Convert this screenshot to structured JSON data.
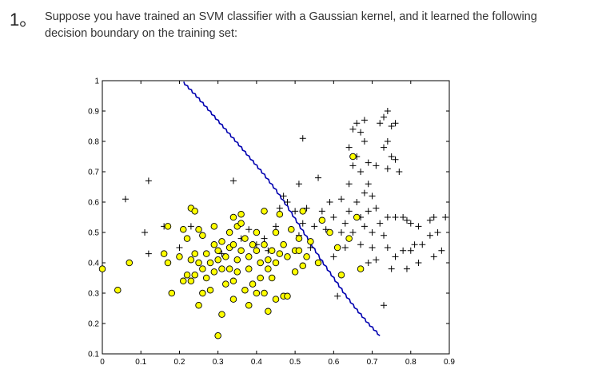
{
  "question": {
    "number": "1。",
    "text": "Suppose you have trained an SVM classifier with a Gaussian kernel, and it learned the following decision boundary on the training set:"
  },
  "chart_data": {
    "type": "scatter",
    "title": "",
    "xlabel": "",
    "ylabel": "",
    "xlim": [
      0,
      0.9
    ],
    "ylim": [
      0.1,
      1
    ],
    "xticks": [
      "0",
      "0.1",
      "0.2",
      "0.3",
      "0.4",
      "0.5",
      "0.6",
      "0.7",
      "0.8",
      "0.9"
    ],
    "yticks": [
      "0.1",
      "0.2",
      "0.3",
      "0.4",
      "0.5",
      "0.6",
      "0.7",
      "0.8",
      "0.9",
      "1"
    ],
    "grid": false,
    "legend": "none",
    "colors": {
      "positive": "#000000",
      "negative_fill": "#ffff00",
      "negative_edge": "#000000",
      "boundary": "#0000b0"
    },
    "series": [
      {
        "marker": "plus",
        "points": [
          [
            0.06,
            0.61
          ],
          [
            0.11,
            0.5
          ],
          [
            0.12,
            0.43
          ],
          [
            0.12,
            0.67
          ],
          [
            0.16,
            0.52
          ],
          [
            0.2,
            0.45
          ],
          [
            0.23,
            0.52
          ],
          [
            0.26,
            0.49
          ],
          [
            0.29,
            0.46
          ],
          [
            0.31,
            0.43
          ],
          [
            0.34,
            0.67
          ],
          [
            0.36,
            0.48
          ],
          [
            0.38,
            0.51
          ],
          [
            0.4,
            0.46
          ],
          [
            0.42,
            0.48
          ],
          [
            0.43,
            0.44
          ],
          [
            0.45,
            0.52
          ],
          [
            0.46,
            0.58
          ],
          [
            0.47,
            0.62
          ],
          [
            0.48,
            0.6
          ],
          [
            0.49,
            0.51
          ],
          [
            0.5,
            0.57
          ],
          [
            0.51,
            0.49
          ],
          [
            0.51,
            0.66
          ],
          [
            0.52,
            0.53
          ],
          [
            0.52,
            0.81
          ],
          [
            0.53,
            0.58
          ],
          [
            0.54,
            0.45
          ],
          [
            0.55,
            0.52
          ],
          [
            0.56,
            0.68
          ],
          [
            0.57,
            0.57
          ],
          [
            0.58,
            0.51
          ],
          [
            0.59,
            0.6
          ],
          [
            0.6,
            0.55
          ],
          [
            0.6,
            0.42
          ],
          [
            0.61,
            0.29
          ],
          [
            0.62,
            0.5
          ],
          [
            0.62,
            0.61
          ],
          [
            0.63,
            0.53
          ],
          [
            0.63,
            0.45
          ],
          [
            0.64,
            0.57
          ],
          [
            0.64,
            0.78
          ],
          [
            0.64,
            0.66
          ],
          [
            0.65,
            0.84
          ],
          [
            0.65,
            0.72
          ],
          [
            0.65,
            0.5
          ],
          [
            0.66,
            0.86
          ],
          [
            0.66,
            0.75
          ],
          [
            0.66,
            0.6
          ],
          [
            0.67,
            0.83
          ],
          [
            0.67,
            0.7
          ],
          [
            0.67,
            0.55
          ],
          [
            0.67,
            0.46
          ],
          [
            0.68,
            0.87
          ],
          [
            0.68,
            0.8
          ],
          [
            0.68,
            0.63
          ],
          [
            0.68,
            0.52
          ],
          [
            0.69,
            0.73
          ],
          [
            0.69,
            0.66
          ],
          [
            0.69,
            0.57
          ],
          [
            0.69,
            0.4
          ],
          [
            0.7,
            0.62
          ],
          [
            0.7,
            0.5
          ],
          [
            0.7,
            0.45
          ],
          [
            0.71,
            0.72
          ],
          [
            0.71,
            0.58
          ],
          [
            0.71,
            0.41
          ],
          [
            0.72,
            0.86
          ],
          [
            0.72,
            0.53
          ],
          [
            0.73,
            0.88
          ],
          [
            0.73,
            0.78
          ],
          [
            0.73,
            0.49
          ],
          [
            0.73,
            0.26
          ],
          [
            0.74,
            0.9
          ],
          [
            0.74,
            0.8
          ],
          [
            0.74,
            0.71
          ],
          [
            0.74,
            0.55
          ],
          [
            0.74,
            0.45
          ],
          [
            0.75,
            0.75
          ],
          [
            0.75,
            0.85
          ],
          [
            0.75,
            0.38
          ],
          [
            0.76,
            0.86
          ],
          [
            0.76,
            0.74
          ],
          [
            0.76,
            0.55
          ],
          [
            0.76,
            0.42
          ],
          [
            0.77,
            0.7
          ],
          [
            0.78,
            0.55
          ],
          [
            0.78,
            0.44
          ],
          [
            0.79,
            0.54
          ],
          [
            0.79,
            0.38
          ],
          [
            0.8,
            0.53
          ],
          [
            0.8,
            0.44
          ],
          [
            0.81,
            0.46
          ],
          [
            0.82,
            0.52
          ],
          [
            0.82,
            0.4
          ],
          [
            0.83,
            0.46
          ],
          [
            0.85,
            0.54
          ],
          [
            0.85,
            0.49
          ],
          [
            0.86,
            0.55
          ],
          [
            0.86,
            0.42
          ],
          [
            0.87,
            0.5
          ],
          [
            0.88,
            0.44
          ],
          [
            0.89,
            0.55
          ]
        ]
      },
      {
        "marker": "circle",
        "points": [
          [
            0.0,
            0.38
          ],
          [
            0.04,
            0.31
          ],
          [
            0.07,
            0.4
          ],
          [
            0.16,
            0.43
          ],
          [
            0.17,
            0.4
          ],
          [
            0.17,
            0.52
          ],
          [
            0.18,
            0.3
          ],
          [
            0.2,
            0.42
          ],
          [
            0.21,
            0.51
          ],
          [
            0.21,
            0.34
          ],
          [
            0.22,
            0.36
          ],
          [
            0.22,
            0.48
          ],
          [
            0.23,
            0.34
          ],
          [
            0.23,
            0.41
          ],
          [
            0.23,
            0.58
          ],
          [
            0.24,
            0.43
          ],
          [
            0.24,
            0.36
          ],
          [
            0.24,
            0.57
          ],
          [
            0.25,
            0.51
          ],
          [
            0.25,
            0.4
          ],
          [
            0.25,
            0.26
          ],
          [
            0.26,
            0.49
          ],
          [
            0.26,
            0.38
          ],
          [
            0.26,
            0.3
          ],
          [
            0.27,
            0.43
          ],
          [
            0.27,
            0.35
          ],
          [
            0.28,
            0.4
          ],
          [
            0.28,
            0.31
          ],
          [
            0.29,
            0.52
          ],
          [
            0.29,
            0.46
          ],
          [
            0.29,
            0.37
          ],
          [
            0.3,
            0.44
          ],
          [
            0.3,
            0.41
          ],
          [
            0.3,
            0.16
          ],
          [
            0.31,
            0.47
          ],
          [
            0.31,
            0.38
          ],
          [
            0.31,
            0.23
          ],
          [
            0.32,
            0.42
          ],
          [
            0.32,
            0.33
          ],
          [
            0.33,
            0.45
          ],
          [
            0.33,
            0.5
          ],
          [
            0.33,
            0.38
          ],
          [
            0.34,
            0.55
          ],
          [
            0.34,
            0.46
          ],
          [
            0.34,
            0.34
          ],
          [
            0.34,
            0.28
          ],
          [
            0.35,
            0.41
          ],
          [
            0.35,
            0.52
          ],
          [
            0.35,
            0.37
          ],
          [
            0.36,
            0.56
          ],
          [
            0.36,
            0.44
          ],
          [
            0.36,
            0.53
          ],
          [
            0.37,
            0.48
          ],
          [
            0.37,
            0.31
          ],
          [
            0.38,
            0.42
          ],
          [
            0.38,
            0.38
          ],
          [
            0.38,
            0.26
          ],
          [
            0.39,
            0.46
          ],
          [
            0.39,
            0.33
          ],
          [
            0.4,
            0.5
          ],
          [
            0.4,
            0.44
          ],
          [
            0.4,
            0.3
          ],
          [
            0.41,
            0.4
          ],
          [
            0.41,
            0.35
          ],
          [
            0.42,
            0.46
          ],
          [
            0.42,
            0.57
          ],
          [
            0.42,
            0.3
          ],
          [
            0.43,
            0.41
          ],
          [
            0.43,
            0.38
          ],
          [
            0.43,
            0.24
          ],
          [
            0.44,
            0.44
          ],
          [
            0.44,
            0.35
          ],
          [
            0.45,
            0.5
          ],
          [
            0.45,
            0.4
          ],
          [
            0.45,
            0.28
          ],
          [
            0.46,
            0.56
          ],
          [
            0.46,
            0.43
          ],
          [
            0.47,
            0.46
          ],
          [
            0.47,
            0.29
          ],
          [
            0.48,
            0.42
          ],
          [
            0.48,
            0.29
          ],
          [
            0.49,
            0.51
          ],
          [
            0.5,
            0.44
          ],
          [
            0.5,
            0.37
          ],
          [
            0.51,
            0.48
          ],
          [
            0.51,
            0.44
          ],
          [
            0.52,
            0.39
          ],
          [
            0.52,
            0.57
          ],
          [
            0.53,
            0.42
          ],
          [
            0.54,
            0.47
          ],
          [
            0.56,
            0.4
          ],
          [
            0.57,
            0.54
          ],
          [
            0.59,
            0.5
          ],
          [
            0.61,
            0.45
          ],
          [
            0.62,
            0.36
          ],
          [
            0.64,
            0.48
          ],
          [
            0.65,
            0.75
          ],
          [
            0.66,
            0.55
          ],
          [
            0.67,
            0.38
          ]
        ]
      }
    ],
    "boundary": {
      "style": "line",
      "x": [
        0.21,
        0.24,
        0.27,
        0.3,
        0.33,
        0.36,
        0.39,
        0.42,
        0.45,
        0.48,
        0.51,
        0.54,
        0.57,
        0.6,
        0.63,
        0.66,
        0.69,
        0.72
      ],
      "y": [
        0.995,
        0.955,
        0.912,
        0.868,
        0.824,
        0.78,
        0.735,
        0.69,
        0.64,
        0.585,
        0.525,
        0.465,
        0.405,
        0.35,
        0.295,
        0.245,
        0.2,
        0.16
      ]
    }
  }
}
